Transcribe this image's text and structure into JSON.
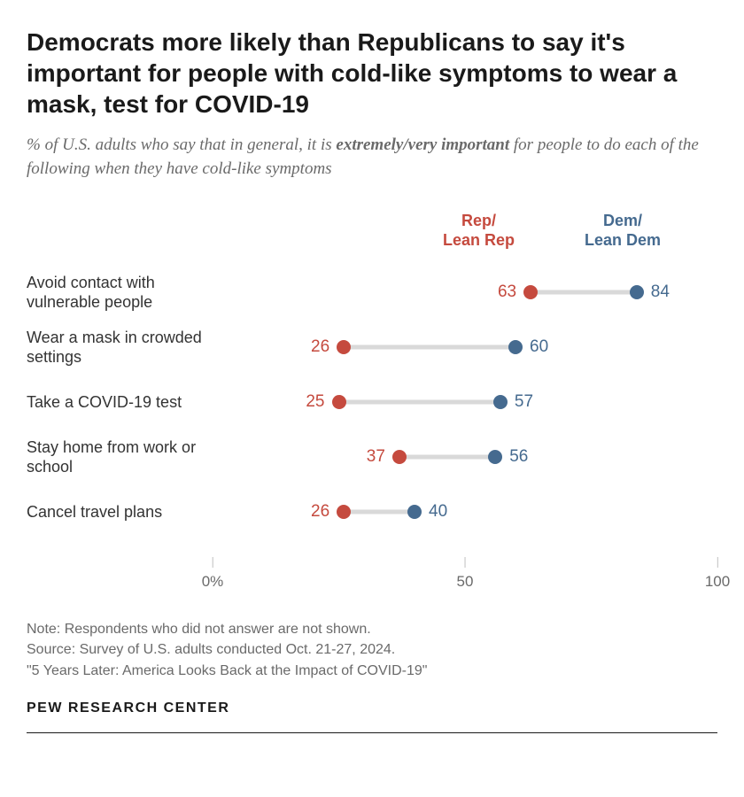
{
  "title": "Democrats more likely than Republicans to say it's important for people with cold-like symptoms to wear a mask, test for COVID-19",
  "subtitle_pre": "% of U.S. adults who say that in general, it is ",
  "subtitle_emph": "extremely/very important",
  "subtitle_post": " for people to do each of the following when they have cold-like symptoms",
  "legend": {
    "rep_line1": "Rep/",
    "rep_line2": "Lean Rep",
    "dem_line1": "Dem/",
    "dem_line2": "Lean Dem"
  },
  "chart": {
    "type": "dot-plot",
    "xmin": 0,
    "xmax": 100,
    "ticks": [
      {
        "value": 0,
        "label": "0%"
      },
      {
        "value": 50,
        "label": "50"
      },
      {
        "value": 100,
        "label": "100"
      }
    ],
    "rep_color": "#c54a3e",
    "dem_color": "#456a8f",
    "connector_color": "#d9d9d9",
    "dot_radius": 8,
    "rows": [
      {
        "label": "Avoid contact with vulnerable people",
        "rep": 63,
        "dem": 84
      },
      {
        "label": "Wear a mask in crowded settings",
        "rep": 26,
        "dem": 60
      },
      {
        "label": "Take a COVID-19 test",
        "rep": 25,
        "dem": 57
      },
      {
        "label": "Stay home from work or school",
        "rep": 37,
        "dem": 56
      },
      {
        "label": "Cancel travel plans",
        "rep": 26,
        "dem": 40
      }
    ]
  },
  "notes": {
    "line1": "Note: Respondents who did not answer are not shown.",
    "line2": "Source: Survey of U.S. adults conducted Oct. 21-27, 2024.",
    "line3": "\"5 Years Later: America Looks Back at the Impact of COVID-19\""
  },
  "logo": "PEW RESEARCH CENTER"
}
